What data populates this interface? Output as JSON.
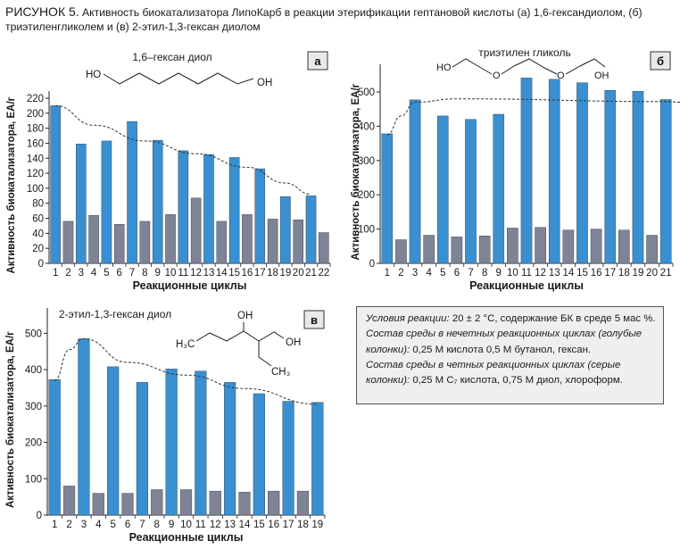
{
  "caption": {
    "label": "РИСУНОК 5.",
    "text": " Активность биокатализатора ЛипоКарб в реакции этерификации гептановой кислоты (а) 1,6-гександиолом, (б) триэтиленгликолем и (в) 2-этил-1,3-гексан диолом"
  },
  "notes": [
    {
      "italic": "Условия реакции:",
      "plain": " 20 ± 2 °С, содержание БК в среде 5 мас %."
    },
    {
      "italic": "Состав среды в нечетных реакционных циклах (голубые колонки):",
      "plain": " 0,25 М кислота 0,5 М бутанол, гексан."
    },
    {
      "italic": "Состав среды в четных реакционных циклах (серые колонки):",
      "plain": " 0,25 М С₇ кислота, 0,75 М диол, хлороформ."
    }
  ],
  "colors": {
    "odd": "#3a8fd0",
    "even": "#7f8396",
    "axis": "#222222",
    "trend": "#333333"
  },
  "chart_data": [
    {
      "id": "a",
      "type": "bar",
      "panel_letter": "а",
      "compound": "1,6–гексан диол",
      "formula_labels": [
        "HO",
        "OH"
      ],
      "xlabel": "Реакционные циклы",
      "ylabel": "Активность биокатализатора, ЕА/г",
      "ylim": [
        0,
        220
      ],
      "yticks": [
        0,
        20,
        40,
        60,
        80,
        100,
        120,
        140,
        160,
        180,
        200,
        220
      ],
      "categories": [
        "1",
        "2",
        "3",
        "4",
        "5",
        "6",
        "7",
        "8",
        "9",
        "10",
        "11",
        "12",
        "13",
        "14",
        "15",
        "16",
        "17",
        "18",
        "19",
        "20",
        "21",
        "22"
      ],
      "values": [
        210,
        56,
        159,
        64,
        163,
        52,
        189,
        56,
        164,
        65,
        150,
        87,
        145,
        56,
        141,
        65,
        126,
        59,
        89,
        58,
        90,
        41
      ],
      "trend": [
        [
          1,
          210
        ],
        [
          4,
          184
        ],
        [
          8,
          163
        ],
        [
          12,
          146
        ],
        [
          16,
          128
        ],
        [
          19,
          107
        ],
        [
          21,
          92
        ]
      ]
    },
    {
      "id": "b",
      "type": "bar",
      "panel_letter": "б",
      "compound": "триэтилен гликоль",
      "formula_labels": [
        "HO",
        "O",
        "O",
        "OH"
      ],
      "xlabel": "Реакционные циклы",
      "ylabel": "Активность биокатализатора, ЕА/г",
      "ylim": [
        0,
        560
      ],
      "yticks": [
        0,
        100,
        200,
        300,
        400,
        500
      ],
      "categories": [
        "1",
        "2",
        "3",
        "4",
        "5",
        "6",
        "7",
        "8",
        "9",
        "10",
        "11",
        "12",
        "13",
        "14",
        "15",
        "16",
        "17",
        "18",
        "19",
        "20",
        "21"
      ],
      "values": [
        378,
        69,
        477,
        82,
        430,
        77,
        420,
        80,
        435,
        103,
        541,
        105,
        537,
        97,
        527,
        100,
        505,
        97,
        502,
        82,
        478
      ],
      "trend": [
        [
          1,
          375
        ],
        [
          2,
          430
        ],
        [
          3,
          470
        ],
        [
          6,
          480
        ],
        [
          21,
          472
        ]
      ]
    },
    {
      "id": "c",
      "type": "bar",
      "panel_letter": "в",
      "compound": "2-этил-1,3-гексан диол",
      "formula_labels": [
        "OH",
        "H₃C",
        "OH",
        "CH₃"
      ],
      "xlabel": "Реакционные циклы",
      "ylabel": "Активность биокатализатора, ЕА/г",
      "ylim": [
        0,
        550
      ],
      "yticks": [
        0,
        100,
        200,
        300,
        400,
        500
      ],
      "categories": [
        "1",
        "2",
        "3",
        "4",
        "5",
        "6",
        "7",
        "8",
        "9",
        "10",
        "11",
        "12",
        "13",
        "14",
        "15",
        "16",
        "17",
        "18",
        "19"
      ],
      "values": [
        373,
        80,
        485,
        60,
        408,
        60,
        365,
        70,
        402,
        70,
        396,
        66,
        365,
        63,
        334,
        66,
        313,
        66,
        310
      ],
      "trend": [
        [
          1,
          370
        ],
        [
          2,
          455
        ],
        [
          3,
          485
        ],
        [
          6,
          420
        ],
        [
          10,
          385
        ],
        [
          14,
          348
        ],
        [
          19,
          305
        ]
      ]
    }
  ]
}
